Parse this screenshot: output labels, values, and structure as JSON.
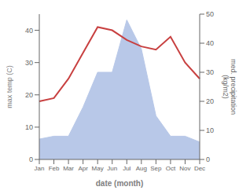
{
  "chart_data": {
    "type": "line",
    "xlabel": "date (month)",
    "ylabel": "max temp (C)",
    "y2label": "med. precipitation\n(kg/m2)",
    "categories": [
      "Jan",
      "Feb",
      "Mar",
      "Apr",
      "May",
      "Jun",
      "Jul",
      "Aug",
      "Sep",
      "Oct",
      "Nov",
      "Dec"
    ],
    "series": [
      {
        "type": "line",
        "color": "#c84040",
        "values": [
          18,
          19,
          25,
          33,
          41,
          40,
          37,
          35,
          34,
          38,
          30,
          25
        ]
      },
      {
        "type": "area",
        "color": "#b8c8e8",
        "axis": "y2",
        "values": [
          7,
          8,
          8,
          18,
          30,
          30,
          48,
          38,
          15,
          8,
          8,
          6
        ]
      }
    ],
    "ylim": [
      0,
      45
    ],
    "yticks": [
      0,
      10,
      20,
      30,
      40
    ],
    "y2lim": [
      0,
      50
    ],
    "y2ticks": [
      0,
      10,
      20,
      30,
      40,
      50
    ],
    "grid": false
  }
}
